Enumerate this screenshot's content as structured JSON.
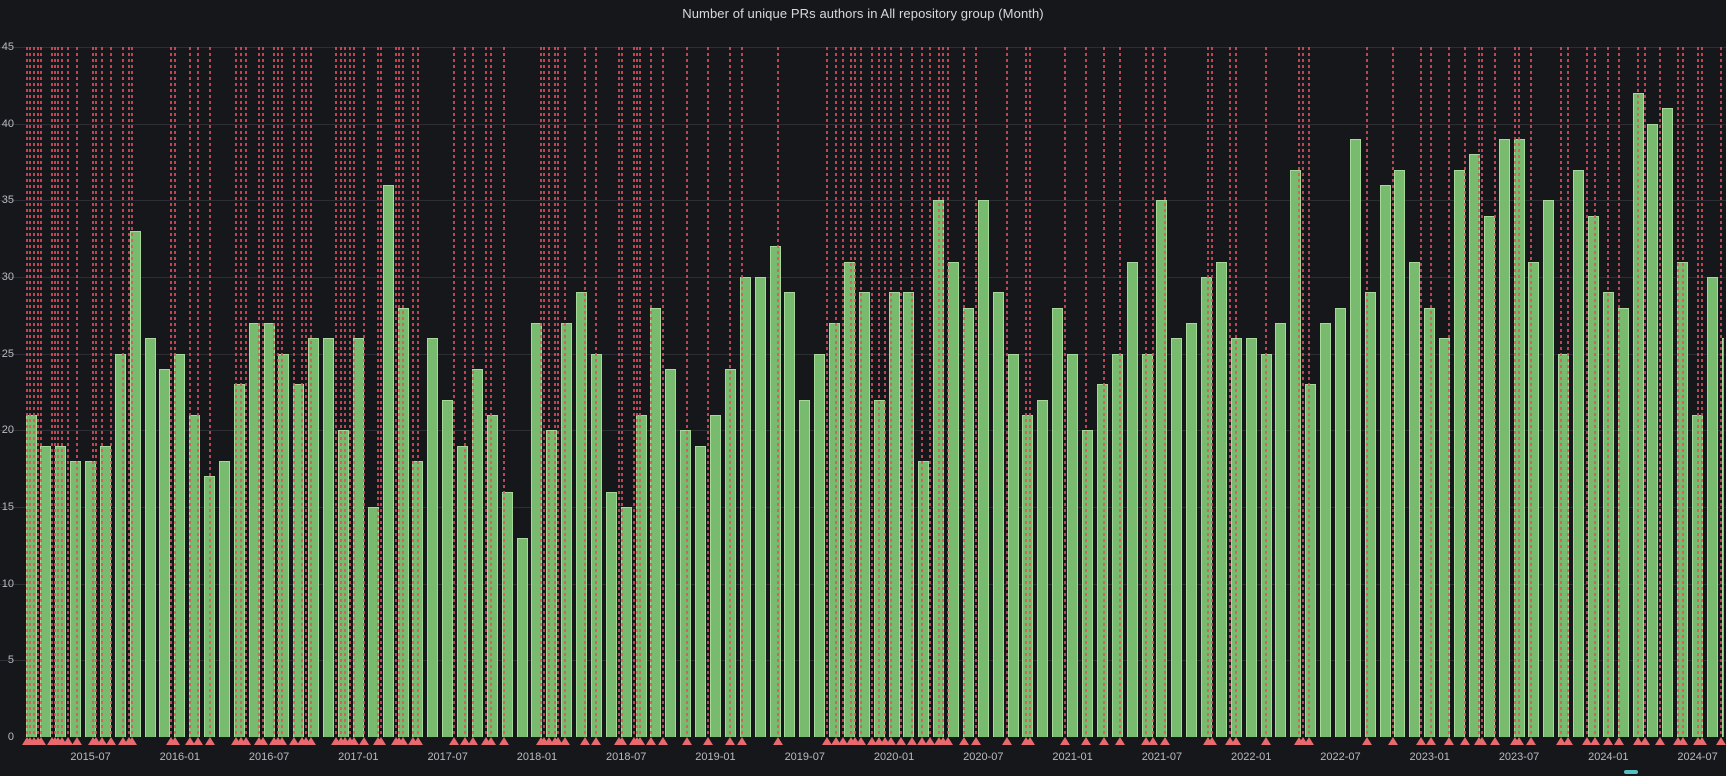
{
  "title": "Number of unique PRs authors in All repository group (Month)",
  "y_axis": {
    "tick_labels": [
      "0",
      "5",
      "10",
      "15",
      "20",
      "25",
      "30",
      "35",
      "40",
      "45"
    ],
    "min": 0,
    "max": 45
  },
  "x_axis": {
    "visible_tick_labels": [
      "2015-07",
      "2016-01",
      "2016-07",
      "2017-01",
      "2017-07",
      "2018-01",
      "2018-07",
      "2019-01",
      "2019-07",
      "2020-01",
      "2020-07",
      "2021-01",
      "2021-07",
      "2022-01",
      "2022-07",
      "2023-01",
      "2023-07",
      "2024-01",
      "2024-07"
    ]
  },
  "legend": {
    "partial_marker_color": "#56bfc0"
  },
  "colors": {
    "background": "#15171b",
    "bar_fill": "#78ba6e",
    "bar_border": "#a6d89a",
    "annotation_line": "#f2495c",
    "annotation_marker": "#e96a6e",
    "grid": "#2c2e33",
    "axis_text": "#b9bbc0",
    "title_text": "#d8d9da"
  },
  "chart_data": {
    "type": "bar",
    "title": "Number of unique PRs authors in All repository group (Month)",
    "xlabel": "",
    "ylabel": "",
    "ylim": [
      0,
      45
    ],
    "grid": true,
    "legend_position": "bottom (cut off)",
    "categories": [
      "2015-03",
      "2015-04",
      "2015-05",
      "2015-06",
      "2015-07",
      "2015-08",
      "2015-09",
      "2015-10",
      "2015-11",
      "2015-12",
      "2016-01",
      "2016-02",
      "2016-03",
      "2016-04",
      "2016-05",
      "2016-06",
      "2016-07",
      "2016-08",
      "2016-09",
      "2016-10",
      "2016-11",
      "2016-12",
      "2017-01",
      "2017-02",
      "2017-03",
      "2017-04",
      "2017-05",
      "2017-06",
      "2017-07",
      "2017-08",
      "2017-09",
      "2017-10",
      "2017-11",
      "2017-12",
      "2018-01",
      "2018-02",
      "2018-03",
      "2018-04",
      "2018-05",
      "2018-06",
      "2018-07",
      "2018-08",
      "2018-09",
      "2018-10",
      "2018-11",
      "2018-12",
      "2019-01",
      "2019-02",
      "2019-03",
      "2019-04",
      "2019-05",
      "2019-06",
      "2019-07",
      "2019-08",
      "2019-09",
      "2019-10",
      "2019-11",
      "2019-12",
      "2020-01",
      "2020-02",
      "2020-03",
      "2020-04",
      "2020-05",
      "2020-06",
      "2020-07",
      "2020-08",
      "2020-09",
      "2020-10",
      "2020-11",
      "2020-12",
      "2021-01",
      "2021-02",
      "2021-03",
      "2021-04",
      "2021-05",
      "2021-06",
      "2021-07",
      "2021-08",
      "2021-09",
      "2021-10",
      "2021-11",
      "2021-12",
      "2022-01",
      "2022-02",
      "2022-03",
      "2022-04",
      "2022-05",
      "2022-06",
      "2022-07",
      "2022-08",
      "2022-09",
      "2022-10",
      "2022-11",
      "2022-12",
      "2023-01",
      "2023-02",
      "2023-03",
      "2023-04",
      "2023-05",
      "2023-06",
      "2023-07",
      "2023-08",
      "2023-09",
      "2023-10",
      "2023-11",
      "2023-12",
      "2024-01",
      "2024-02",
      "2024-03",
      "2024-04",
      "2024-05",
      "2024-06",
      "2024-07",
      "2024-08",
      "2024-09"
    ],
    "values": [
      21,
      19,
      19,
      18,
      18,
      19,
      25,
      33,
      26,
      24,
      25,
      21,
      17,
      18,
      23,
      27,
      27,
      25,
      23,
      26,
      26,
      20,
      26,
      15,
      36,
      28,
      18,
      26,
      22,
      19,
      24,
      21,
      16,
      13,
      27,
      20,
      27,
      29,
      25,
      16,
      15,
      21,
      28,
      24,
      20,
      19,
      21,
      24,
      30,
      30,
      32,
      29,
      22,
      25,
      27,
      31,
      29,
      22,
      29,
      29,
      18,
      35,
      31,
      28,
      35,
      29,
      25,
      21,
      22,
      28,
      25,
      20,
      23,
      25,
      31,
      25,
      35,
      26,
      27,
      30,
      31,
      26,
      26,
      25,
      27,
      37,
      23,
      27,
      28,
      39,
      29,
      36,
      37,
      31,
      28,
      26,
      37,
      38,
      34,
      39,
      39,
      31,
      35,
      25,
      37,
      34,
      29,
      28,
      42,
      40,
      41,
      31,
      21,
      30,
      26
    ],
    "annotations": {
      "style": "vertical red dashed lines with upward triangle markers at axis",
      "positions_month_index": [
        -0.3,
        -0.05,
        0.2,
        0.45,
        0.7,
        1.4,
        1.6,
        1.8,
        2.1,
        2.5,
        3.1,
        4.15,
        4.4,
        4.75,
        5.35,
        6.15,
        6.6,
        6.8,
        9.4,
        9.65,
        10.7,
        11.2,
        12.0,
        13.8,
        14.1,
        14.45,
        15.3,
        15.6,
        16.3,
        16.6,
        16.9,
        17.7,
        18.2,
        18.5,
        18.8,
        20.5,
        20.8,
        21.1,
        21.45,
        21.7,
        22.4,
        23.3,
        23.5,
        24.5,
        24.75,
        25.0,
        25.7,
        26.0,
        28.4,
        29.2,
        29.7,
        30.6,
        30.9,
        31.8,
        34.25,
        34.5,
        34.8,
        35.2,
        35.45,
        35.9,
        37.2,
        38.0,
        39.5,
        39.7,
        40.5,
        40.7,
        40.9,
        41.7,
        42.45,
        44.1,
        45.5,
        47.0,
        47.8,
        50.2,
        53.5,
        54.1,
        54.6,
        55.1,
        55.4,
        55.8,
        56.5,
        57.0,
        57.4,
        57.8,
        58.5,
        59.2,
        59.9,
        60.4,
        61.0,
        61.3,
        61.6,
        62.7,
        63.5,
        65.6,
        66.9,
        67.15,
        69.5,
        70.9,
        72.1,
        73.2,
        74.9,
        75.4,
        76.2,
        79.1,
        79.4,
        80.6,
        81.0,
        83.0,
        85.2,
        85.5,
        85.9,
        89.8,
        91.5,
        93.4,
        94.1,
        95.3,
        96.4,
        97.3,
        97.5,
        98.4,
        99.7,
        100.0,
        100.8,
        102.8,
        103.3,
        104.6,
        105.1,
        106.0,
        106.7,
        108.0,
        108.45,
        109.5,
        110.7,
        111.0,
        112.0,
        112.3,
        113.6
      ]
    }
  }
}
